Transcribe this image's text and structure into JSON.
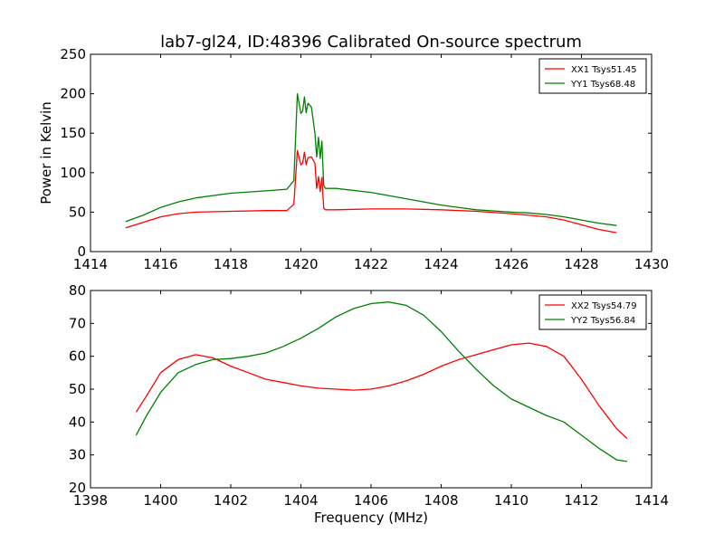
{
  "title": "lab7-gl24, ID:48396 Calibrated On-source spectrum",
  "xlabel": "Frequency (MHz)",
  "ylabel": "Power in Kelvin",
  "chart_data": [
    {
      "type": "line",
      "xlim": [
        1414,
        1430
      ],
      "ylim": [
        0,
        250
      ],
      "xticks": [
        1414,
        1416,
        1418,
        1420,
        1422,
        1424,
        1426,
        1428,
        1430
      ],
      "yticks": [
        0,
        50,
        100,
        150,
        200,
        250
      ],
      "ylabel": "Power in Kelvin",
      "legend_position": "top-right",
      "series": [
        {
          "name": "XX1 Tsys51.45",
          "color": "#ff0000",
          "x": [
            1415.0,
            1415.5,
            1416.0,
            1416.5,
            1417.0,
            1418.0,
            1419.0,
            1419.6,
            1419.8,
            1419.9,
            1420.0,
            1420.05,
            1420.1,
            1420.15,
            1420.2,
            1420.3,
            1420.4,
            1420.45,
            1420.5,
            1420.55,
            1420.6,
            1420.65,
            1420.7,
            1421.0,
            1422.0,
            1423.0,
            1424.0,
            1425.0,
            1426.0,
            1426.5,
            1427.0,
            1427.5,
            1428.0,
            1428.5,
            1429.0
          ],
          "y": [
            30,
            37,
            44,
            48,
            50,
            51,
            52,
            52,
            60,
            128,
            110,
            112,
            126,
            110,
            119,
            120,
            112,
            80,
            95,
            76,
            94,
            55,
            53,
            53,
            54,
            54,
            53,
            51,
            48,
            46,
            44,
            40,
            34,
            28,
            24
          ]
        },
        {
          "name": "YY1 Tsys68.48",
          "color": "#008000",
          "x": [
            1415.0,
            1415.5,
            1416.0,
            1416.5,
            1417.0,
            1418.0,
            1419.0,
            1419.6,
            1419.8,
            1419.9,
            1420.0,
            1420.05,
            1420.1,
            1420.15,
            1420.2,
            1420.3,
            1420.4,
            1420.45,
            1420.5,
            1420.55,
            1420.6,
            1420.65,
            1420.7,
            1421.0,
            1422.0,
            1423.0,
            1424.0,
            1425.0,
            1426.0,
            1426.5,
            1427.0,
            1427.5,
            1428.0,
            1428.5,
            1429.0
          ],
          "y": [
            38,
            46,
            56,
            63,
            68,
            74,
            77,
            79,
            90,
            200,
            175,
            178,
            196,
            176,
            188,
            183,
            150,
            120,
            145,
            118,
            140,
            84,
            80,
            80,
            75,
            67,
            59,
            53,
            50,
            49,
            47,
            44,
            40,
            36,
            33
          ]
        }
      ]
    },
    {
      "type": "line",
      "xlim": [
        1398,
        1414
      ],
      "ylim": [
        20,
        80
      ],
      "xticks": [
        1398,
        1400,
        1402,
        1404,
        1406,
        1408,
        1410,
        1412,
        1414
      ],
      "yticks": [
        20,
        30,
        40,
        50,
        60,
        70,
        80
      ],
      "xlabel": "Frequency (MHz)",
      "legend_position": "top-right",
      "series": [
        {
          "name": "XX2 Tsys54.79",
          "color": "#ff0000",
          "x": [
            1399.3,
            1399.6,
            1400.0,
            1400.5,
            1401.0,
            1401.5,
            1402.0,
            1402.5,
            1403.0,
            1403.5,
            1404.0,
            1404.5,
            1405.0,
            1405.5,
            1406.0,
            1406.5,
            1407.0,
            1407.5,
            1408.0,
            1408.5,
            1409.0,
            1409.5,
            1410.0,
            1410.5,
            1411.0,
            1411.5,
            1412.0,
            1412.5,
            1413.0,
            1413.3
          ],
          "y": [
            43,
            48,
            55,
            59,
            60.5,
            59.5,
            57,
            55,
            53,
            52,
            51,
            50.3,
            50,
            49.7,
            50,
            51,
            52.5,
            54.5,
            57,
            59,
            60.5,
            62,
            63.5,
            64,
            63,
            60,
            53,
            45,
            38,
            35
          ]
        },
        {
          "name": "YY2 Tsys56.84",
          "color": "#008000",
          "x": [
            1399.3,
            1399.6,
            1400.0,
            1400.5,
            1401.0,
            1401.5,
            1402.0,
            1402.5,
            1403.0,
            1403.5,
            1404.0,
            1404.5,
            1405.0,
            1405.5,
            1406.0,
            1406.5,
            1407.0,
            1407.5,
            1408.0,
            1408.5,
            1409.0,
            1409.5,
            1410.0,
            1410.5,
            1411.0,
            1411.5,
            1412.0,
            1412.5,
            1413.0,
            1413.3
          ],
          "y": [
            36,
            42,
            49,
            55,
            57.5,
            59,
            59.3,
            60,
            61,
            63,
            65.5,
            68.5,
            72,
            74.5,
            76,
            76.5,
            75.5,
            72.5,
            67.5,
            61.5,
            56,
            51,
            47,
            44.5,
            42,
            40,
            36,
            32,
            28.5,
            28
          ]
        }
      ]
    }
  ]
}
